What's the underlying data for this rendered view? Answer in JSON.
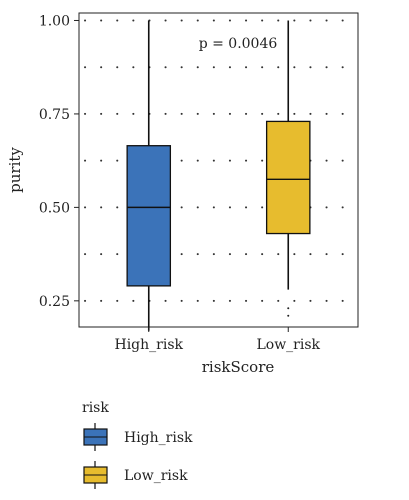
{
  "chart_data": {
    "type": "box",
    "xlabel": "riskScore",
    "ylabel": "purity",
    "ylim": [
      0.18,
      1.02
    ],
    "yticks": [
      0.25,
      0.5,
      0.75,
      1.0
    ],
    "ytick_labels": [
      "0.25",
      "0.50",
      "0.75",
      "1.00"
    ],
    "grid": "dotted-horizontal",
    "annotation": "p = 0.0046",
    "categories": [
      "High_risk",
      "Low_risk"
    ],
    "boxes": [
      {
        "category": "High_risk",
        "min": 0.17,
        "q1": 0.29,
        "median": 0.5,
        "q3": 0.665,
        "max": 1.0,
        "outliers": [],
        "color": "#3b73b9"
      },
      {
        "category": "Low_risk",
        "min": 0.28,
        "q1": 0.43,
        "median": 0.575,
        "q3": 0.73,
        "max": 1.0,
        "outliers": [
          0.23,
          0.21
        ],
        "color": "#e7bc2e"
      }
    ],
    "legend": {
      "title": "risk",
      "position": "bottom-left",
      "items": [
        {
          "label": "High_risk",
          "color": "#3b73b9"
        },
        {
          "label": "Low_risk",
          "color": "#e7bc2e"
        }
      ]
    }
  }
}
